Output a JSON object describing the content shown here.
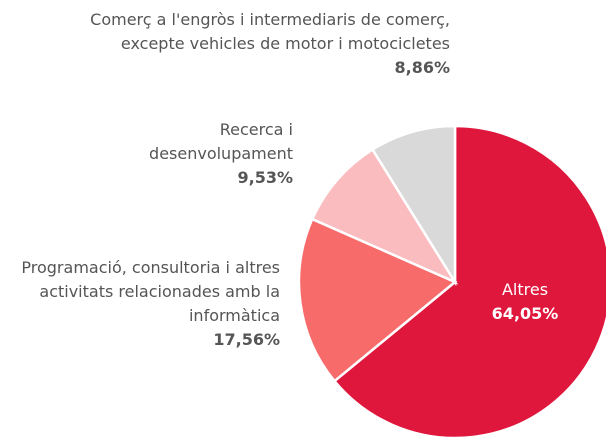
{
  "chart_data": {
    "type": "pie",
    "categories": [
      "Altres",
      "Programació, consultoria i altres activitats relacionades amb la informàtica",
      "Recerca i desenvolupament",
      "Comerç a l'engròs i intermediaris de comerç, excepte vehicles de motor i motocicletes"
    ],
    "values": [
      64.05,
      17.56,
      9.53,
      8.86
    ],
    "value_labels": [
      "64,05%",
      "17,56%",
      "9,53%",
      "8,86%"
    ],
    "colors": [
      "#e0173d",
      "#f76b6b",
      "#fbbcc0",
      "#d9d9d9"
    ]
  }
}
